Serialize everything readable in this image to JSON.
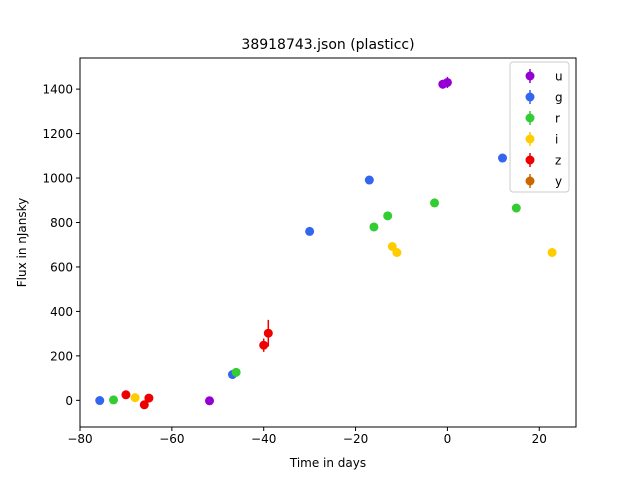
{
  "chart_data": {
    "type": "scatter",
    "title": "38918743.json (plasticc)",
    "xlabel": "Time in days",
    "ylabel": "Flux in nJansky",
    "xlim": [
      -80,
      28
    ],
    "ylim": [
      -120,
      1540
    ],
    "xticks": [
      -80,
      -60,
      -40,
      -20,
      0,
      20
    ],
    "yticks": [
      0,
      200,
      400,
      600,
      800,
      1000,
      1200,
      1400
    ],
    "xtick_labels": [
      "−80",
      "−60",
      "−40",
      "−20",
      "0",
      "20"
    ],
    "ytick_labels": [
      "0",
      "200",
      "400",
      "600",
      "800",
      "1000",
      "1200",
      "1400"
    ],
    "grid": false,
    "legend_position": "top-right",
    "series": [
      {
        "name": "u",
        "color": "#9400d3",
        "points": [
          {
            "x": -51.8,
            "y": -2,
            "err": 6
          },
          {
            "x": -1.0,
            "y": 1422,
            "err": 20
          },
          {
            "x": 0.0,
            "y": 1430,
            "err": 25
          }
        ]
      },
      {
        "name": "g",
        "color": "#3366ee",
        "points": [
          {
            "x": -75.7,
            "y": -1,
            "err": 5
          },
          {
            "x": -46.8,
            "y": 116,
            "err": 8
          },
          {
            "x": -30.0,
            "y": 760,
            "err": 8
          },
          {
            "x": -17.0,
            "y": 991,
            "err": 8
          },
          {
            "x": 12.0,
            "y": 1090,
            "err": 10
          }
        ]
      },
      {
        "name": "r",
        "color": "#33cc33",
        "points": [
          {
            "x": -72.7,
            "y": 2,
            "err": 5
          },
          {
            "x": -46.0,
            "y": 126,
            "err": 6
          },
          {
            "x": -16.0,
            "y": 780,
            "err": 8
          },
          {
            "x": -13.0,
            "y": 830,
            "err": 8
          },
          {
            "x": -2.8,
            "y": 888,
            "err": 8
          },
          {
            "x": 15.0,
            "y": 865,
            "err": 8
          }
        ]
      },
      {
        "name": "i",
        "color": "#ffcc00",
        "points": [
          {
            "x": -68.0,
            "y": 12,
            "err": 6
          },
          {
            "x": -12.0,
            "y": 692,
            "err": 8
          },
          {
            "x": -11.0,
            "y": 665,
            "err": 8
          },
          {
            "x": 22.8,
            "y": 665,
            "err": 8
          }
        ]
      },
      {
        "name": "z",
        "color": "#ee0000",
        "points": [
          {
            "x": -70.0,
            "y": 25,
            "err": 15
          },
          {
            "x": -66.0,
            "y": -20,
            "err": 12
          },
          {
            "x": -65.0,
            "y": 10,
            "err": 10
          },
          {
            "x": -40.0,
            "y": 248,
            "err": 30
          },
          {
            "x": -39.0,
            "y": 302,
            "err": 60
          }
        ]
      },
      {
        "name": "y",
        "color": "#cc6600",
        "points": []
      }
    ]
  }
}
